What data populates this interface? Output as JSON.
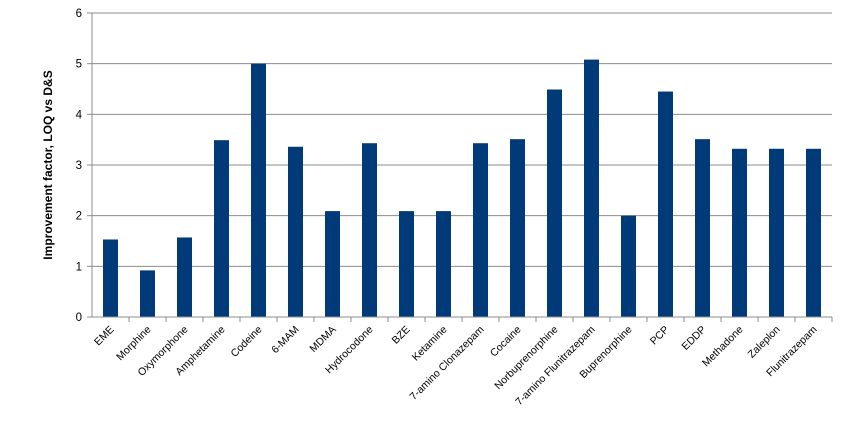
{
  "chart_data": {
    "type": "bar",
    "title": "",
    "xlabel": "",
    "ylabel": "Improvement factor, LOQ vs D&S",
    "ylim": [
      0,
      6
    ],
    "yticks": [
      0,
      1,
      2,
      3,
      4,
      5,
      6
    ],
    "grid": true,
    "legend": "none",
    "bar_color": "#003a78",
    "categories": [
      "EME",
      "Morphine",
      "Oxymorphone",
      "Amphetamine",
      "Codeine",
      "6-MAM",
      "MDMA",
      "Hydrocodone",
      "BZE",
      "Ketamine",
      "7-amino Clonazepam",
      "Cocaine",
      "Norbuprenorphine",
      "7-amino Flunitrazepam",
      "Buprenorphine",
      "PCP",
      "EDDP",
      "Methadone",
      "Zaleplon",
      "Flunitrazepam"
    ],
    "values": [
      1.53,
      0.92,
      1.57,
      3.49,
      5.0,
      3.36,
      2.09,
      3.43,
      2.09,
      2.09,
      3.43,
      3.51,
      4.49,
      5.08,
      2.0,
      4.45,
      3.51,
      3.32,
      3.32,
      3.32
    ]
  }
}
